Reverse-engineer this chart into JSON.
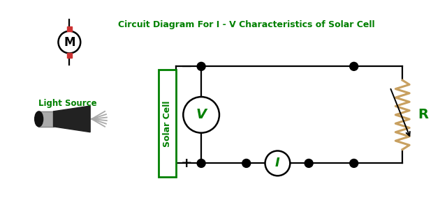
{
  "bg_color": "#ffffff",
  "green_color": "#008000",
  "black_color": "#000000",
  "red_color": "#cc3333",
  "resistor_color": "#c8a060",
  "title_text": "Circuit Diagram For I - V Characteristics of Solar Cell",
  "light_source_label": "Light Source",
  "solar_cell_label": "Solar Cell",
  "ammeter_label": "I",
  "voltmeter_label": "V",
  "motor_label": "M",
  "resistor_label": "R",
  "plus_label": "+",
  "minus_label": "−"
}
